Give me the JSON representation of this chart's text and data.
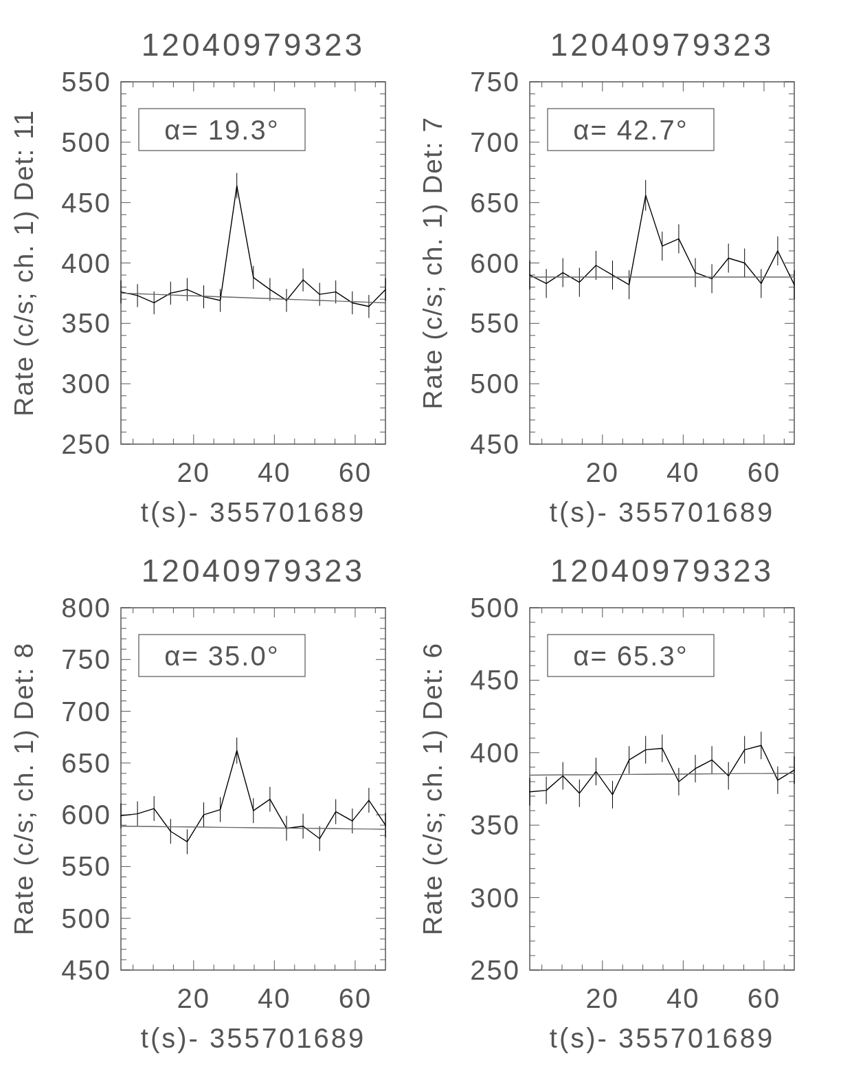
{
  "chart_data": [
    {
      "type": "line",
      "title": "12040979323",
      "xlabel": "t(s)- 355701689",
      "ylabel": "Rate (c/s; ch. 1) Det: 11",
      "annotations": [
        "α= 19.3°"
      ],
      "x": [
        2.0,
        6.1,
        10.2,
        14.3,
        18.4,
        22.5,
        26.6,
        30.7,
        34.8,
        38.9,
        43.0,
        47.1,
        51.2,
        55.2,
        59.3,
        63.4,
        67.5
      ],
      "series": [
        {
          "color": "#000000",
          "values": [
            376,
            373,
            367,
            375,
            378,
            372,
            369,
            464,
            388,
            378,
            369,
            386,
            374,
            376,
            367,
            364,
            378
          ],
          "errors": [
            9.5,
            9.5,
            9.5,
            9.5,
            9.5,
            9.5,
            9.5,
            10.5,
            9.5,
            9.5,
            9.5,
            9.5,
            9.5,
            9.5,
            9.5,
            9.5,
            9.5
          ]
        },
        {
          "type": "line",
          "color": "#666666",
          "values": [
            375,
            374.5,
            374,
            373.5,
            373,
            372.5,
            372,
            371.5,
            371,
            370.5,
            370,
            369.5,
            369,
            368.5,
            368,
            367.5,
            367
          ]
        }
      ],
      "xlim": [
        2,
        67.5
      ],
      "xticks": [
        {
          "value": 5,
          "label": null
        },
        {
          "value": 10,
          "label": null
        },
        {
          "value": 15,
          "label": null
        },
        20,
        {
          "value": 25,
          "label": null
        },
        {
          "value": 30,
          "label": null
        },
        {
          "value": 35,
          "label": null
        },
        40,
        {
          "value": 45,
          "label": null
        },
        {
          "value": 50,
          "label": null
        },
        {
          "value": 55,
          "label": null
        },
        60,
        {
          "value": 65,
          "label": null
        }
      ],
      "ylim": [
        250,
        550
      ],
      "yticks": [
        250,
        {
          "value": 260,
          "label": null
        },
        {
          "value": 270,
          "label": null
        },
        {
          "value": 280,
          "label": null
        },
        {
          "value": 290,
          "label": null
        },
        300,
        {
          "value": 310,
          "label": null
        },
        {
          "value": 320,
          "label": null
        },
        {
          "value": 330,
          "label": null
        },
        {
          "value": 340,
          "label": null
        },
        350,
        {
          "value": 360,
          "label": null
        },
        {
          "value": 370,
          "label": null
        },
        {
          "value": 380,
          "label": null
        },
        {
          "value": 390,
          "label": null
        },
        400,
        {
          "value": 410,
          "label": null
        },
        {
          "value": 420,
          "label": null
        },
        {
          "value": 430,
          "label": null
        },
        {
          "value": 440,
          "label": null
        },
        450,
        {
          "value": 460,
          "label": null
        },
        {
          "value": 470,
          "label": null
        },
        {
          "value": 480,
          "label": null
        },
        {
          "value": 490,
          "label": null
        },
        500,
        {
          "value": 510,
          "label": null
        },
        {
          "value": 520,
          "label": null
        },
        {
          "value": 530,
          "label": null
        },
        {
          "value": 540,
          "label": null
        },
        550
      ]
    },
    {
      "type": "line",
      "title": "12040979323",
      "xlabel": "t(s)- 355701689",
      "ylabel": "Rate (c/s; ch. 1) Det: 7",
      "annotations": [
        "α= 42.7°"
      ],
      "x": [
        2.0,
        6.1,
        10.2,
        14.3,
        18.4,
        22.5,
        26.6,
        30.7,
        34.8,
        38.9,
        43.0,
        47.1,
        51.2,
        55.2,
        59.3,
        63.4,
        67.5
      ],
      "series": [
        {
          "color": "#000000",
          "values": [
            590,
            583,
            592,
            584,
            598,
            590,
            582,
            656,
            614,
            620,
            592,
            587,
            604,
            600,
            583,
            610,
            582
          ],
          "errors": [
            12,
            12,
            12,
            12,
            12,
            12,
            12,
            12.7,
            12,
            12,
            12,
            12,
            12,
            12,
            12,
            12,
            12
          ]
        },
        {
          "type": "line",
          "color": "#666666",
          "values": [
            588.3,
            588.3,
            588.3,
            588.3,
            588.3,
            588.3,
            588.3,
            588.3,
            588.3,
            588.3,
            588.3,
            588.3,
            588.3,
            588.3,
            588.3,
            588.3,
            588.3
          ]
        }
      ],
      "xlim": [
        2,
        67.5
      ],
      "xticks": [
        {
          "value": 5,
          "label": null
        },
        {
          "value": 10,
          "label": null
        },
        {
          "value": 15,
          "label": null
        },
        20,
        {
          "value": 25,
          "label": null
        },
        {
          "value": 30,
          "label": null
        },
        {
          "value": 35,
          "label": null
        },
        40,
        {
          "value": 45,
          "label": null
        },
        {
          "value": 50,
          "label": null
        },
        {
          "value": 55,
          "label": null
        },
        60,
        {
          "value": 65,
          "label": null
        }
      ],
      "ylim": [
        450,
        750
      ],
      "yticks": [
        450,
        {
          "value": 460,
          "label": null
        },
        {
          "value": 470,
          "label": null
        },
        {
          "value": 480,
          "label": null
        },
        {
          "value": 490,
          "label": null
        },
        500,
        {
          "value": 510,
          "label": null
        },
        {
          "value": 520,
          "label": null
        },
        {
          "value": 530,
          "label": null
        },
        {
          "value": 540,
          "label": null
        },
        550,
        {
          "value": 560,
          "label": null
        },
        {
          "value": 570,
          "label": null
        },
        {
          "value": 580,
          "label": null
        },
        {
          "value": 590,
          "label": null
        },
        600,
        {
          "value": 610,
          "label": null
        },
        {
          "value": 620,
          "label": null
        },
        {
          "value": 630,
          "label": null
        },
        {
          "value": 640,
          "label": null
        },
        650,
        {
          "value": 660,
          "label": null
        },
        {
          "value": 670,
          "label": null
        },
        {
          "value": 680,
          "label": null
        },
        {
          "value": 690,
          "label": null
        },
        700,
        {
          "value": 710,
          "label": null
        },
        {
          "value": 720,
          "label": null
        },
        {
          "value": 730,
          "label": null
        },
        {
          "value": 740,
          "label": null
        },
        750
      ]
    },
    {
      "type": "line",
      "title": "12040979323",
      "xlabel": "t(s)- 355701689",
      "ylabel": "Rate (c/s; ch. 1) Det: 8",
      "annotations": [
        "α= 35.0°"
      ],
      "x": [
        2.0,
        6.1,
        10.2,
        14.3,
        18.4,
        22.5,
        26.6,
        30.7,
        34.8,
        38.9,
        43.0,
        47.1,
        51.2,
        55.2,
        59.3,
        63.4,
        67.5
      ],
      "series": [
        {
          "color": "#000000",
          "values": [
            599,
            601,
            606,
            584,
            574,
            600,
            605,
            662,
            604,
            615,
            587,
            589,
            577,
            603,
            594,
            614,
            590
          ],
          "errors": [
            12,
            12,
            12,
            12,
            12,
            12,
            12,
            12.6,
            12,
            12,
            12,
            12,
            12,
            12,
            12,
            12,
            12
          ]
        },
        {
          "type": "line",
          "color": "#666666",
          "values": [
            589,
            588.8,
            588.6,
            588.4,
            588.3,
            588.1,
            587.9,
            587.7,
            587.5,
            587.3,
            587.1,
            586.9,
            586.8,
            586.6,
            586.4,
            586.2,
            586
          ]
        }
      ],
      "xlim": [
        2,
        67.5
      ],
      "xticks": [
        {
          "value": 5,
          "label": null
        },
        {
          "value": 10,
          "label": null
        },
        {
          "value": 15,
          "label": null
        },
        20,
        {
          "value": 25,
          "label": null
        },
        {
          "value": 30,
          "label": null
        },
        {
          "value": 35,
          "label": null
        },
        40,
        {
          "value": 45,
          "label": null
        },
        {
          "value": 50,
          "label": null
        },
        {
          "value": 55,
          "label": null
        },
        60,
        {
          "value": 65,
          "label": null
        }
      ],
      "ylim": [
        450,
        800
      ],
      "yticks": [
        450,
        {
          "value": 460,
          "label": null
        },
        {
          "value": 470,
          "label": null
        },
        {
          "value": 480,
          "label": null
        },
        {
          "value": 490,
          "label": null
        },
        500,
        {
          "value": 510,
          "label": null
        },
        {
          "value": 520,
          "label": null
        },
        {
          "value": 530,
          "label": null
        },
        {
          "value": 540,
          "label": null
        },
        550,
        {
          "value": 560,
          "label": null
        },
        {
          "value": 570,
          "label": null
        },
        {
          "value": 580,
          "label": null
        },
        {
          "value": 590,
          "label": null
        },
        600,
        {
          "value": 610,
          "label": null
        },
        {
          "value": 620,
          "label": null
        },
        {
          "value": 630,
          "label": null
        },
        {
          "value": 640,
          "label": null
        },
        650,
        {
          "value": 660,
          "label": null
        },
        {
          "value": 670,
          "label": null
        },
        {
          "value": 680,
          "label": null
        },
        {
          "value": 690,
          "label": null
        },
        700,
        {
          "value": 710,
          "label": null
        },
        {
          "value": 720,
          "label": null
        },
        {
          "value": 730,
          "label": null
        },
        {
          "value": 740,
          "label": null
        },
        750,
        {
          "value": 760,
          "label": null
        },
        {
          "value": 770,
          "label": null
        },
        {
          "value": 780,
          "label": null
        },
        {
          "value": 790,
          "label": null
        },
        800
      ]
    },
    {
      "type": "line",
      "title": "12040979323",
      "xlabel": "t(s)- 355701689",
      "ylabel": "Rate (c/s; ch. 1) Det: 6",
      "annotations": [
        "α= 65.3°"
      ],
      "x": [
        2.0,
        6.1,
        10.2,
        14.3,
        18.4,
        22.5,
        26.6,
        30.7,
        34.8,
        38.9,
        43.0,
        47.1,
        51.2,
        55.2,
        59.3,
        63.4,
        67.5
      ],
      "series": [
        {
          "color": "#000000",
          "values": [
            373,
            374,
            384,
            372,
            387,
            371,
            395,
            402,
            403,
            380,
            389,
            395,
            384,
            402,
            405,
            381,
            388
          ],
          "errors": [
            9.5,
            9.5,
            9.5,
            9.5,
            9.5,
            9.5,
            9.5,
            9.5,
            9.5,
            9.5,
            9.5,
            9.5,
            9.5,
            9.5,
            9.5,
            9.5,
            9.5
          ]
        },
        {
          "type": "line",
          "color": "#666666",
          "values": [
            384.5,
            384.6,
            384.7,
            384.7,
            384.8,
            384.9,
            385,
            385.1,
            385.2,
            385.2,
            385.3,
            385.4,
            385.5,
            385.6,
            385.6,
            385.7,
            385.8
          ]
        }
      ],
      "xlim": [
        2,
        67.5
      ],
      "xticks": [
        {
          "value": 5,
          "label": null
        },
        {
          "value": 10,
          "label": null
        },
        {
          "value": 15,
          "label": null
        },
        20,
        {
          "value": 25,
          "label": null
        },
        {
          "value": 30,
          "label": null
        },
        {
          "value": 35,
          "label": null
        },
        40,
        {
          "value": 45,
          "label": null
        },
        {
          "value": 50,
          "label": null
        },
        {
          "value": 55,
          "label": null
        },
        60,
        {
          "value": 65,
          "label": null
        }
      ],
      "ylim": [
        250,
        500
      ],
      "yticks": [
        250,
        {
          "value": 260,
          "label": null
        },
        {
          "value": 270,
          "label": null
        },
        {
          "value": 280,
          "label": null
        },
        {
          "value": 290,
          "label": null
        },
        300,
        {
          "value": 310,
          "label": null
        },
        {
          "value": 320,
          "label": null
        },
        {
          "value": 330,
          "label": null
        },
        {
          "value": 340,
          "label": null
        },
        350,
        {
          "value": 360,
          "label": null
        },
        {
          "value": 370,
          "label": null
        },
        {
          "value": 380,
          "label": null
        },
        {
          "value": 390,
          "label": null
        },
        400,
        {
          "value": 410,
          "label": null
        },
        {
          "value": 420,
          "label": null
        },
        {
          "value": 430,
          "label": null
        },
        {
          "value": 440,
          "label": null
        },
        450,
        {
          "value": 460,
          "label": null
        },
        {
          "value": 470,
          "label": null
        },
        {
          "value": 480,
          "label": null
        },
        {
          "value": 490,
          "label": null
        },
        500
      ]
    }
  ]
}
